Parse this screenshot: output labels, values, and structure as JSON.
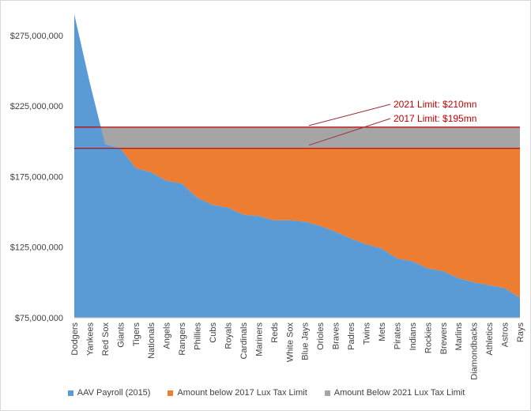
{
  "chart_data": {
    "type": "area",
    "categories": [
      "Dodgers",
      "Yankees",
      "Red Sox",
      "Giants",
      "Tigers",
      "Nationals",
      "Angels",
      "Rangers",
      "Phillies",
      "Cubs",
      "Royals",
      "Cardinals",
      "Mariners",
      "Reds",
      "White Sox",
      "Blue Jays",
      "Orioles",
      "Braves",
      "Padres",
      "Twins",
      "Mets",
      "Pirates",
      "Indians",
      "Rockies",
      "Brewers",
      "Marlins",
      "Diamondbacks",
      "Athletics",
      "Astros",
      "Rays"
    ],
    "series": [
      {
        "name": "AAV Payroll (2015)",
        "color": "#5b9bd5",
        "values": [
          290000000,
          242000000,
          198000000,
          195000000,
          181000000,
          178000000,
          172000000,
          170000000,
          160000000,
          155000000,
          153000000,
          148000000,
          147000000,
          144000000,
          144000000,
          143000000,
          140000000,
          136000000,
          131000000,
          127000000,
          124000000,
          117000000,
          115000000,
          110000000,
          108000000,
          103000000,
          100000000,
          98000000,
          96000000,
          89000000
        ]
      },
      {
        "name": "Amount below 2017 Lux Tax Limit",
        "color": "#ed7d31"
      },
      {
        "name": "Amount Below 2021 Lux Tax Limit",
        "color": "#a5a5a5"
      }
    ],
    "limits": [
      {
        "label": "2021 Limit: $210mn",
        "value": 210000000
      },
      {
        "label": "2017 Limit: $195mn",
        "value": 195000000
      }
    ],
    "limit_line_color": "#c00000",
    "ylim": [
      75000000,
      290000000
    ],
    "yticks": [
      75000000,
      125000000,
      175000000,
      225000000,
      275000000
    ],
    "ytick_labels": [
      "$75,000,000",
      "$125,000,000",
      "$175,000,000",
      "$225,000,000",
      "$275,000,000"
    ],
    "grid": false,
    "legend": "bottom"
  }
}
